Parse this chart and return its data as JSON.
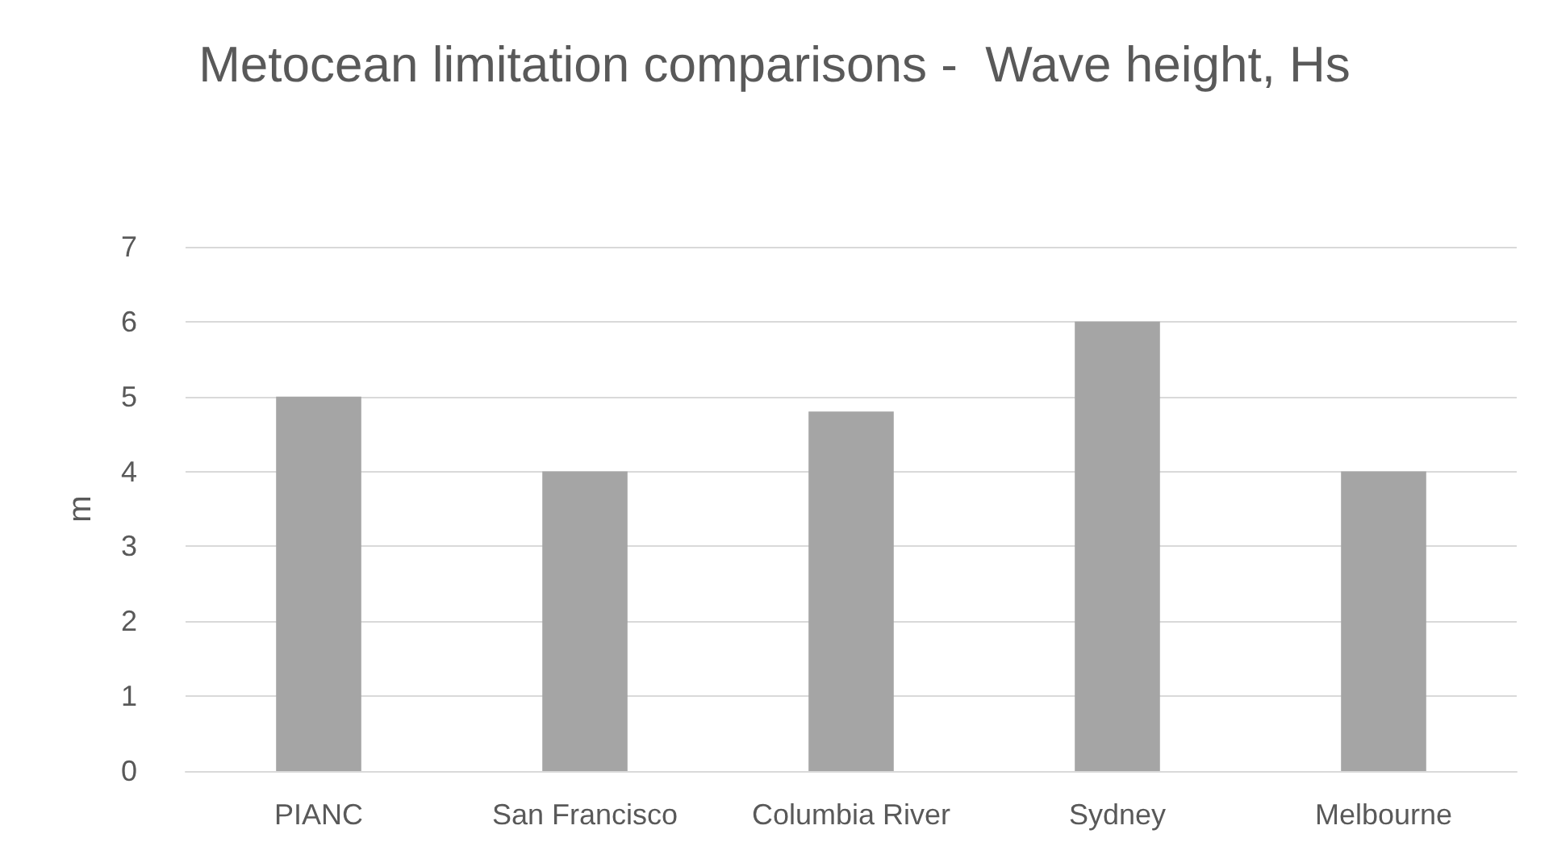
{
  "chart_data": {
    "type": "bar",
    "title": "Metocean limitation comparisons -  Wave height, Hs",
    "ylabel": "m",
    "categories": [
      "PIANC",
      "San Francisco",
      "Columbia River",
      "Sydney",
      "Melbourne"
    ],
    "values": [
      5,
      4,
      4.8,
      6,
      4
    ],
    "color": "#a5a5a5",
    "ylim": [
      0,
      7
    ],
    "yticks": [
      0,
      1,
      2,
      3,
      4,
      5,
      6,
      7
    ],
    "grid": "y"
  }
}
